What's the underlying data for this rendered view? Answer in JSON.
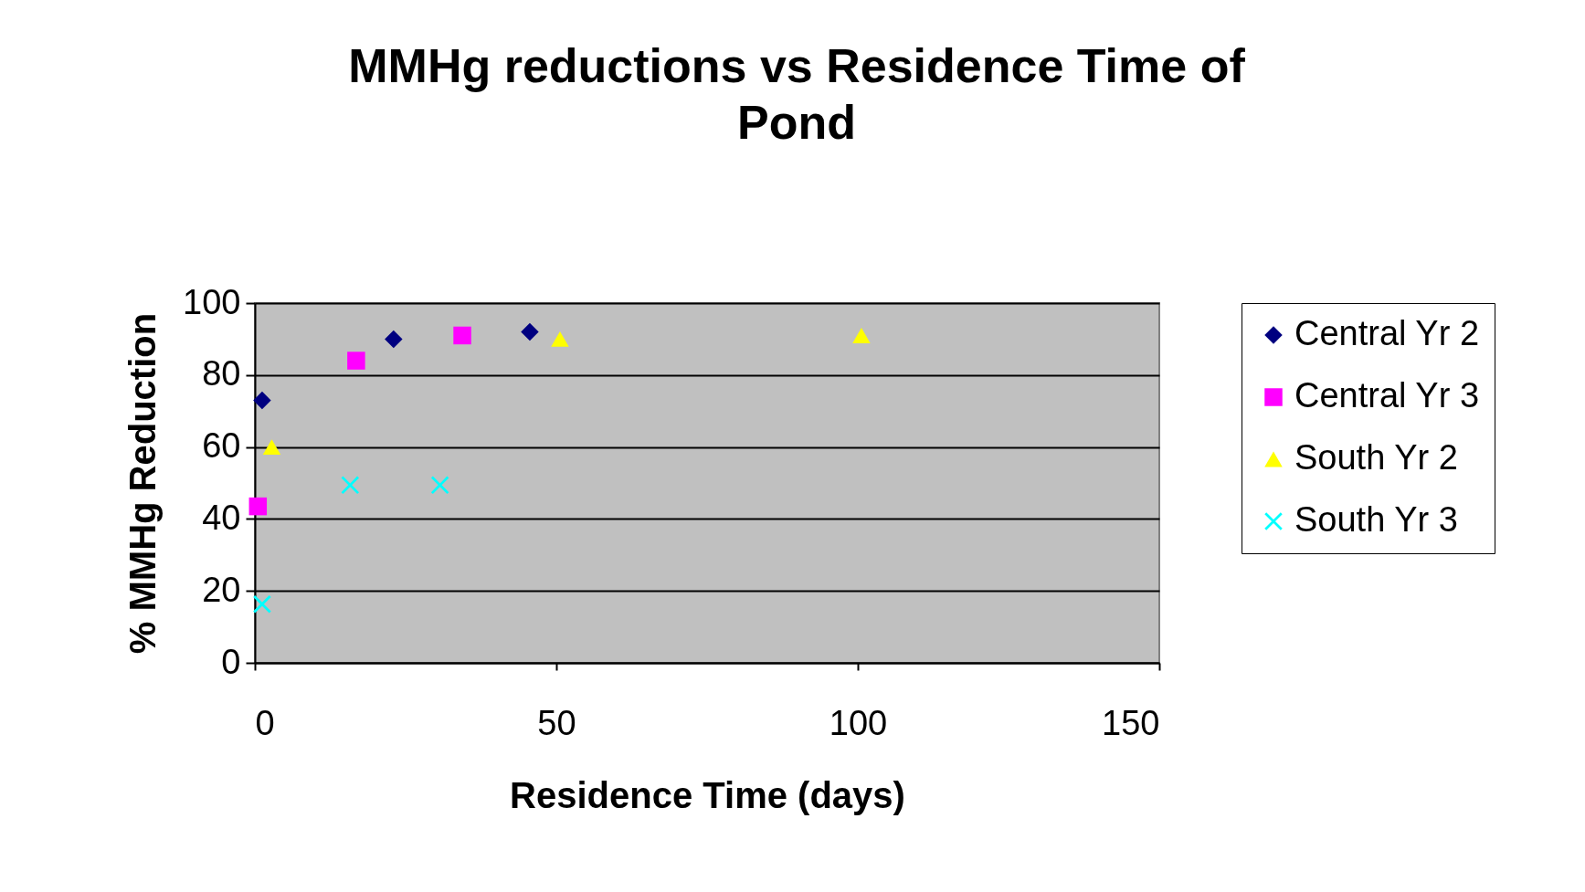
{
  "chart_data": {
    "type": "scatter",
    "title": "MMHg reductions vs Residence Time of Pond",
    "xlabel": "Residence Time (days)",
    "ylabel": "% MMHg Reduction",
    "xlim": [
      0,
      150
    ],
    "xticks": [
      0,
      50,
      100,
      150
    ],
    "ylim": [
      0,
      100
    ],
    "yticks": [
      0,
      20,
      40,
      60,
      80,
      100
    ],
    "grid": "y",
    "legend": "right",
    "series": [
      {
        "name": "Central Yr 2",
        "color": "#000080",
        "marker": "diamond",
        "x": [
          1.2,
          23,
          45.6
        ],
        "values": [
          73,
          90,
          92
        ]
      },
      {
        "name": "Central Yr 3",
        "color": "#ff00ff",
        "marker": "square",
        "x": [
          0.5,
          16.8,
          34.4
        ],
        "values": [
          43.5,
          84,
          91
        ]
      },
      {
        "name": "South Yr 2",
        "color": "#ffff00",
        "marker": "triangle",
        "x": [
          2.8,
          50.6,
          100.6
        ],
        "values": [
          60,
          90,
          91
        ]
      },
      {
        "name": "South Yr 3",
        "color": "#00ffff",
        "marker": "cross",
        "x": [
          1.2,
          15.8,
          30.7
        ],
        "values": [
          16.3,
          49.4,
          49.4
        ]
      }
    ]
  }
}
